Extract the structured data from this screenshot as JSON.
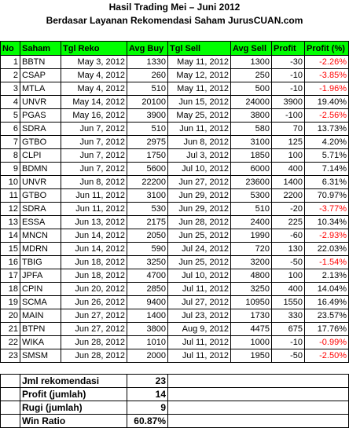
{
  "title": "Hasil Trading Mei – Juni 2012",
  "subtitle": "Berdasar Layanan Rekomendasi Saham JurusCUAN.com",
  "headers": [
    "No",
    "Saham",
    "Tgl Reko",
    "Avg Buy",
    "Tgl Sell",
    "Avg Sell",
    "Profit",
    "Profit (%)"
  ],
  "rows": [
    {
      "no": "1",
      "saham": "BBTN",
      "tgl_reko": "May 3, 2012",
      "avg_buy": "1330",
      "tgl_sell": "May 11, 2012",
      "avg_sell": "1300",
      "profit": "-30",
      "profit_pct": "-2.26%",
      "negative": true
    },
    {
      "no": "2",
      "saham": "CSAP",
      "tgl_reko": "May 4, 2012",
      "avg_buy": "260",
      "tgl_sell": "May 12, 2012",
      "avg_sell": "250",
      "profit": "-10",
      "profit_pct": "-3.85%",
      "negative": true
    },
    {
      "no": "3",
      "saham": "MTLA",
      "tgl_reko": "May 4, 2012",
      "avg_buy": "510",
      "tgl_sell": "May 11, 2012",
      "avg_sell": "500",
      "profit": "-10",
      "profit_pct": "-1.96%",
      "negative": true
    },
    {
      "no": "4",
      "saham": "UNVR",
      "tgl_reko": "May 14, 2012",
      "avg_buy": "20100",
      "tgl_sell": "Jun 15, 2012",
      "avg_sell": "24000",
      "profit": "3900",
      "profit_pct": "19.40%",
      "negative": false
    },
    {
      "no": "5",
      "saham": "PGAS",
      "tgl_reko": "May 16, 2012",
      "avg_buy": "3900",
      "tgl_sell": "May 25, 2012",
      "avg_sell": "3800",
      "profit": "-100",
      "profit_pct": "-2.56%",
      "negative": true
    },
    {
      "no": "6",
      "saham": "SDRA",
      "tgl_reko": "Jun 7, 2012",
      "avg_buy": "510",
      "tgl_sell": "Jun 11, 2012",
      "avg_sell": "580",
      "profit": "70",
      "profit_pct": "13.73%",
      "negative": false
    },
    {
      "no": "7",
      "saham": "GTBO",
      "tgl_reko": "Jun 7, 2012",
      "avg_buy": "2975",
      "tgl_sell": "Jun 8, 2012",
      "avg_sell": "3100",
      "profit": "125",
      "profit_pct": "4.20%",
      "negative": false
    },
    {
      "no": "8",
      "saham": "CLPI",
      "tgl_reko": "Jun 7, 2012",
      "avg_buy": "1750",
      "tgl_sell": "Jul 3, 2012",
      "avg_sell": "1850",
      "profit": "100",
      "profit_pct": "5.71%",
      "negative": false
    },
    {
      "no": "9",
      "saham": "BDMN",
      "tgl_reko": "Jun 7, 2012",
      "avg_buy": "5600",
      "tgl_sell": "Jul 10, 2012",
      "avg_sell": "6000",
      "profit": "400",
      "profit_pct": "7.14%",
      "negative": false
    },
    {
      "no": "10",
      "saham": "UNVR",
      "tgl_reko": "Jun 8, 2012",
      "avg_buy": "22200",
      "tgl_sell": "Jun 27, 2012",
      "avg_sell": "23600",
      "profit": "1400",
      "profit_pct": "6.31%",
      "negative": false
    },
    {
      "no": "11",
      "saham": "GTBO",
      "tgl_reko": "Jun 11, 2012",
      "avg_buy": "3100",
      "tgl_sell": "Jun 29, 2012",
      "avg_sell": "5300",
      "profit": "2200",
      "profit_pct": "70.97%",
      "negative": false
    },
    {
      "no": "12",
      "saham": "SDRA",
      "tgl_reko": "Jun 11, 2012",
      "avg_buy": "530",
      "tgl_sell": "Jun 29, 2012",
      "avg_sell": "510",
      "profit": "-20",
      "profit_pct": "-3.77%",
      "negative": true
    },
    {
      "no": "13",
      "saham": "ESSA",
      "tgl_reko": "Jun 13, 2012",
      "avg_buy": "2175",
      "tgl_sell": "Jun 28, 2012",
      "avg_sell": "2400",
      "profit": "225",
      "profit_pct": "10.34%",
      "negative": false
    },
    {
      "no": "14",
      "saham": "MNCN",
      "tgl_reko": "Jun 14, 2012",
      "avg_buy": "2050",
      "tgl_sell": "Jun 25, 2012",
      "avg_sell": "1990",
      "profit": "-60",
      "profit_pct": "-2.93%",
      "negative": true
    },
    {
      "no": "15",
      "saham": "MDRN",
      "tgl_reko": "Jun 14, 2012",
      "avg_buy": "590",
      "tgl_sell": "Jul 24, 2012",
      "avg_sell": "720",
      "profit": "130",
      "profit_pct": "22.03%",
      "negative": false
    },
    {
      "no": "16",
      "saham": "TBIG",
      "tgl_reko": "Jun 18, 2012",
      "avg_buy": "3250",
      "tgl_sell": "Jun 25, 2012",
      "avg_sell": "3200",
      "profit": "-50",
      "profit_pct": "-1.54%",
      "negative": true
    },
    {
      "no": "17",
      "saham": "JPFA",
      "tgl_reko": "Jun 18, 2012",
      "avg_buy": "4700",
      "tgl_sell": "Jul 10, 2012",
      "avg_sell": "4800",
      "profit": "100",
      "profit_pct": "2.13%",
      "negative": false
    },
    {
      "no": "18",
      "saham": "CPIN",
      "tgl_reko": "Jun 20, 2012",
      "avg_buy": "2850",
      "tgl_sell": "Jul 11, 2012",
      "avg_sell": "3250",
      "profit": "400",
      "profit_pct": "14.04%",
      "negative": false
    },
    {
      "no": "19",
      "saham": "SCMA",
      "tgl_reko": "Jun 26, 2012",
      "avg_buy": "9400",
      "tgl_sell": "Jul 27, 2012",
      "avg_sell": "10950",
      "profit": "1550",
      "profit_pct": "16.49%",
      "negative": false
    },
    {
      "no": "20",
      "saham": "MAIN",
      "tgl_reko": "Jun 27, 2012",
      "avg_buy": "1400",
      "tgl_sell": "Jul 23, 2012",
      "avg_sell": "1730",
      "profit": "330",
      "profit_pct": "23.57%",
      "negative": false
    },
    {
      "no": "21",
      "saham": "BTPN",
      "tgl_reko": "Jun 27, 2012",
      "avg_buy": "3800",
      "tgl_sell": "Aug 9, 2012",
      "avg_sell": "4475",
      "profit": "675",
      "profit_pct": "17.76%",
      "negative": false
    },
    {
      "no": "22",
      "saham": "WIKA",
      "tgl_reko": "Jun 28, 2012",
      "avg_buy": "1010",
      "tgl_sell": "Jul 11, 2012",
      "avg_sell": "1000",
      "profit": "-10",
      "profit_pct": "-0.99%",
      "negative": true
    },
    {
      "no": "23",
      "saham": "SMSM",
      "tgl_reko": "Jun 28, 2012",
      "avg_buy": "2000",
      "tgl_sell": "Jul 11, 2012",
      "avg_sell": "1950",
      "profit": "-50",
      "profit_pct": "-2.50%",
      "negative": true
    }
  ],
  "summary": [
    {
      "label": "Jml rekomendasi",
      "value": "23"
    },
    {
      "label": "Profit (jumlah)",
      "value": "14"
    },
    {
      "label": "Rugi (jumlah)",
      "value": "9"
    },
    {
      "label": "Win Ratio",
      "value": "60.87%"
    }
  ],
  "colors": {
    "header_bg": "#00ff00",
    "negative": "#ff0000"
  }
}
